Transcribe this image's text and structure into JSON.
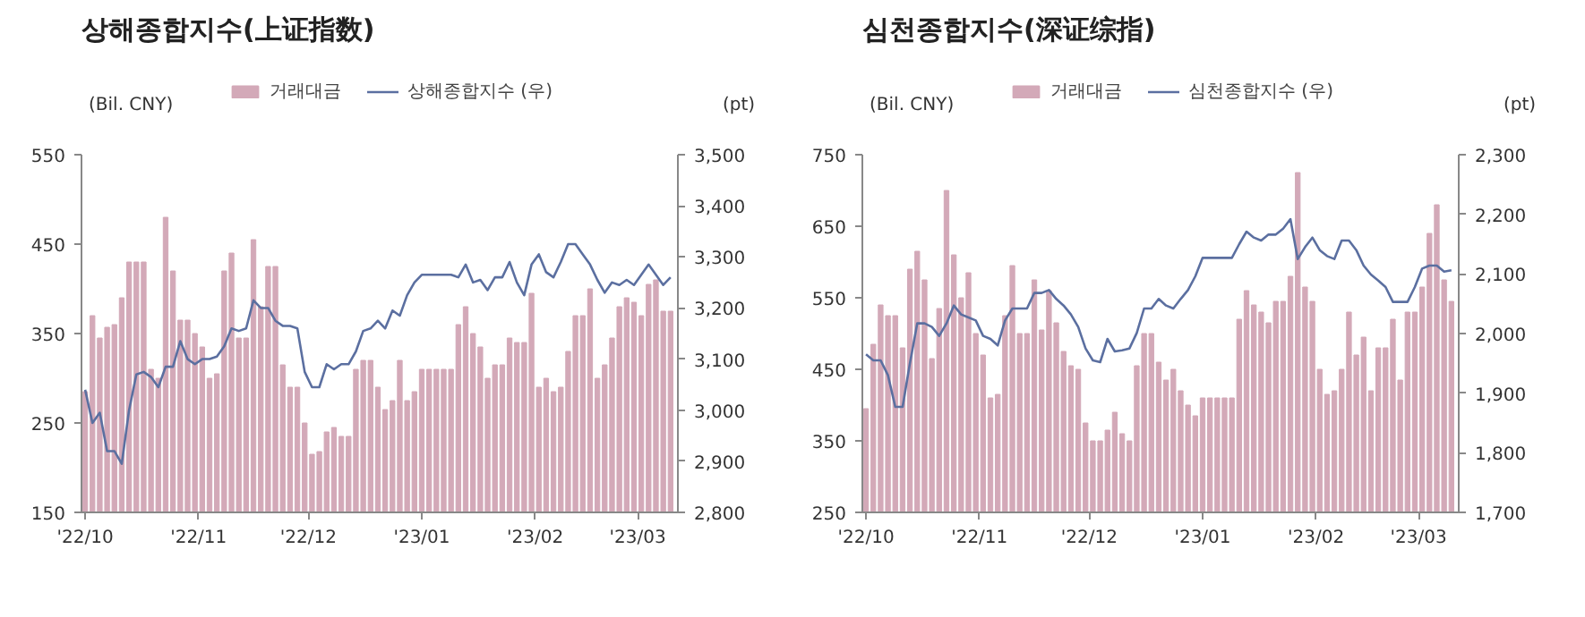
{
  "chart_data": [
    {
      "type": "bar",
      "title": "상해종합지수(上证指数)",
      "ylabel": "(Bil. CNY)",
      "y2label": "(pt)",
      "legend": "top",
      "x": [
        "2022-10-01",
        "2022-10-03",
        "2022-10-05",
        "2022-10-07",
        "2022-10-09",
        "2022-10-11",
        "2022-10-13",
        "2022-10-15",
        "2022-10-17",
        "2022-10-19",
        "2022-10-21",
        "2022-10-23",
        "2022-10-25",
        "2022-10-27",
        "2022-10-29",
        "2022-10-31",
        "2022-11-02",
        "2022-11-04",
        "2022-11-06",
        "2022-11-08",
        "2022-11-10",
        "2022-11-12",
        "2022-11-14",
        "2022-11-16",
        "2022-11-18",
        "2022-11-20",
        "2022-11-22",
        "2022-11-24",
        "2022-11-26",
        "2022-11-28",
        "2022-11-30",
        "2022-12-02",
        "2022-12-04",
        "2022-12-06",
        "2022-12-08",
        "2022-12-10",
        "2022-12-12",
        "2022-12-14",
        "2022-12-16",
        "2022-12-18",
        "2022-12-20",
        "2022-12-22",
        "2022-12-24",
        "2022-12-26",
        "2022-12-28",
        "2022-12-30",
        "2023-01-01",
        "2023-01-03",
        "2023-01-05",
        "2023-01-07",
        "2023-01-09",
        "2023-01-11",
        "2023-01-13",
        "2023-01-15",
        "2023-01-17",
        "2023-01-19",
        "2023-01-21",
        "2023-01-23",
        "2023-01-25",
        "2023-01-27",
        "2023-01-29",
        "2023-01-31",
        "2023-02-02",
        "2023-02-04",
        "2023-02-06",
        "2023-02-08",
        "2023-02-10",
        "2023-02-12",
        "2023-02-14",
        "2023-02-16",
        "2023-02-18",
        "2023-02-20",
        "2023-02-22",
        "2023-02-24",
        "2023-02-26",
        "2023-02-28",
        "2023-03-02",
        "2023-03-04",
        "2023-03-06",
        "2023-03-08",
        "2023-03-10"
      ],
      "xlim": [
        "2022-09-30",
        "2023-03-12"
      ],
      "xticks": [
        {
          "value": "2022-10-01",
          "label": "'22/10"
        },
        {
          "value": "2022-11-01",
          "label": "'22/11"
        },
        {
          "value": "2022-12-01",
          "label": "'22/12"
        },
        {
          "value": "2023-01-01",
          "label": "'23/01"
        },
        {
          "value": "2023-02-01",
          "label": "'23/02"
        },
        {
          "value": "2023-03-01",
          "label": "'23/03"
        }
      ],
      "ylim": [
        150,
        550
      ],
      "yticks": [
        150,
        250,
        350,
        450,
        550
      ],
      "y2lim": [
        2800,
        3500
      ],
      "y2ticks": [
        {
          "value": 2800,
          "label": "2,800"
        },
        {
          "value": 2900,
          "label": "2,900"
        },
        {
          "value": 3000,
          "label": "3,000"
        },
        {
          "value": 3100,
          "label": "3,100"
        },
        {
          "value": 3200,
          "label": "3,200"
        },
        {
          "value": 3300,
          "label": "3,300"
        },
        {
          "value": 3400,
          "label": "3,400"
        },
        {
          "value": 3500,
          "label": "3,500"
        }
      ],
      "series": [
        {
          "name": "거래대금",
          "color": "#d3a9b8",
          "values": [
            285,
            370,
            345,
            357,
            360,
            390,
            430,
            430,
            430,
            310,
            300,
            480,
            420,
            365,
            365,
            350,
            335,
            300,
            305,
            420,
            440,
            345,
            345,
            455,
            380,
            425,
            425,
            315,
            290,
            290,
            250,
            215,
            218,
            240,
            245,
            235,
            235,
            310,
            320,
            320,
            290,
            265,
            275,
            320,
            275,
            285,
            310,
            310,
            310,
            310,
            310,
            360,
            380,
            350,
            335,
            300,
            315,
            315,
            345,
            340,
            340,
            395,
            290,
            300,
            285,
            290,
            330,
            370,
            370,
            400,
            300,
            315,
            345,
            380,
            390,
            385,
            370,
            405,
            410,
            375,
            375
          ]
        },
        {
          "name": "상해종합지수 (우)",
          "type": "line",
          "axis": "y2",
          "color": "#5b6fa0",
          "values": [
            3040,
            2975,
            2995,
            2920,
            2920,
            2895,
            3000,
            3070,
            3075,
            3065,
            3045,
            3085,
            3085,
            3135,
            3100,
            3090,
            3100,
            3100,
            3105,
            3125,
            3160,
            3155,
            3160,
            3215,
            3200,
            3200,
            3175,
            3165,
            3165,
            3160,
            3075,
            3045,
            3045,
            3090,
            3080,
            3090,
            3090,
            3115,
            3155,
            3160,
            3175,
            3160,
            3195,
            3185,
            3225,
            3250,
            3265,
            3265,
            3265,
            3265,
            3265,
            3260,
            3285,
            3250,
            3255,
            3235,
            3260,
            3260,
            3290,
            3250,
            3225,
            3285,
            3305,
            3270,
            3260,
            3290,
            3325,
            3325,
            3305,
            3285,
            3255,
            3230,
            3250,
            3245,
            3255,
            3245,
            3265,
            3285,
            3265,
            3245,
            3260
          ]
        }
      ]
    },
    {
      "type": "bar",
      "title": "심천종합지수(深证综指)",
      "ylabel": "(Bil. CNY)",
      "y2label": "(pt)",
      "legend": "top",
      "x": [
        "2022-10-01",
        "2022-10-03",
        "2022-10-05",
        "2022-10-07",
        "2022-10-09",
        "2022-10-11",
        "2022-10-13",
        "2022-10-15",
        "2022-10-17",
        "2022-10-19",
        "2022-10-21",
        "2022-10-23",
        "2022-10-25",
        "2022-10-27",
        "2022-10-29",
        "2022-10-31",
        "2022-11-02",
        "2022-11-04",
        "2022-11-06",
        "2022-11-08",
        "2022-11-10",
        "2022-11-12",
        "2022-11-14",
        "2022-11-16",
        "2022-11-18",
        "2022-11-20",
        "2022-11-22",
        "2022-11-24",
        "2022-11-26",
        "2022-11-28",
        "2022-11-30",
        "2022-12-02",
        "2022-12-04",
        "2022-12-06",
        "2022-12-08",
        "2022-12-10",
        "2022-12-12",
        "2022-12-14",
        "2022-12-16",
        "2022-12-18",
        "2022-12-20",
        "2022-12-22",
        "2022-12-24",
        "2022-12-26",
        "2022-12-28",
        "2022-12-30",
        "2023-01-01",
        "2023-01-03",
        "2023-01-05",
        "2023-01-07",
        "2023-01-09",
        "2023-01-11",
        "2023-01-13",
        "2023-01-15",
        "2023-01-17",
        "2023-01-19",
        "2023-01-21",
        "2023-01-23",
        "2023-01-25",
        "2023-01-27",
        "2023-01-29",
        "2023-01-31",
        "2023-02-02",
        "2023-02-04",
        "2023-02-06",
        "2023-02-08",
        "2023-02-10",
        "2023-02-12",
        "2023-02-14",
        "2023-02-16",
        "2023-02-18",
        "2023-02-20",
        "2023-02-22",
        "2023-02-24",
        "2023-02-26",
        "2023-02-28",
        "2023-03-02",
        "2023-03-04",
        "2023-03-06",
        "2023-03-08",
        "2023-03-10"
      ],
      "xlim": [
        "2022-09-30",
        "2023-03-12"
      ],
      "xticks": [
        {
          "value": "2022-10-01",
          "label": "'22/10"
        },
        {
          "value": "2022-11-01",
          "label": "'22/11"
        },
        {
          "value": "2022-12-01",
          "label": "'22/12"
        },
        {
          "value": "2023-01-01",
          "label": "'23/01"
        },
        {
          "value": "2023-02-01",
          "label": "'23/02"
        },
        {
          "value": "2023-03-01",
          "label": "'23/03"
        }
      ],
      "ylim": [
        250,
        750
      ],
      "yticks": [
        250,
        350,
        450,
        550,
        650,
        750
      ],
      "y2lim": [
        1700,
        2300
      ],
      "y2ticks": [
        {
          "value": 1700,
          "label": "1,700"
        },
        {
          "value": 1800,
          "label": "1,800"
        },
        {
          "value": 1900,
          "label": "1,900"
        },
        {
          "value": 2000,
          "label": "2,000"
        },
        {
          "value": 2100,
          "label": "2,100"
        },
        {
          "value": 2200,
          "label": "2,200"
        },
        {
          "value": 2300,
          "label": "2,300"
        }
      ],
      "series": [
        {
          "name": "거래대금",
          "color": "#d3a9b8",
          "values": [
            395,
            485,
            540,
            525,
            525,
            480,
            590,
            615,
            575,
            465,
            535,
            700,
            610,
            550,
            585,
            500,
            470,
            410,
            415,
            525,
            595,
            500,
            500,
            575,
            505,
            560,
            515,
            475,
            455,
            450,
            375,
            350,
            350,
            365,
            390,
            360,
            350,
            455,
            500,
            500,
            460,
            435,
            450,
            420,
            400,
            385,
            410,
            410,
            410,
            410,
            410,
            520,
            560,
            540,
            530,
            515,
            545,
            545,
            580,
            725,
            565,
            545,
            450,
            415,
            420,
            450,
            530,
            470,
            495,
            420,
            480,
            480,
            520,
            435,
            530,
            530,
            565,
            640,
            680,
            575,
            545
          ]
        },
        {
          "name": "심천종합지수 (우)",
          "type": "line",
          "axis": "y2",
          "color": "#5b6fa0",
          "values": [
            1965,
            1955,
            1955,
            1930,
            1877,
            1877,
            1950,
            2017,
            2017,
            2011,
            1996,
            2017,
            2047,
            2032,
            2027,
            2022,
            1996,
            1991,
            1980,
            2022,
            2042,
            2042,
            2042,
            2068,
            2068,
            2073,
            2058,
            2047,
            2032,
            2011,
            1975,
            1955,
            1952,
            1991,
            1970,
            1972,
            1975,
            2001,
            2042,
            2042,
            2058,
            2047,
            2042,
            2058,
            2073,
            2096,
            2127,
            2127,
            2127,
            2127,
            2127,
            2150,
            2171,
            2161,
            2156,
            2166,
            2166,
            2176,
            2192,
            2125,
            2145,
            2161,
            2140,
            2130,
            2125,
            2156,
            2156,
            2140,
            2114,
            2099,
            2089,
            2078,
            2053,
            2053,
            2053,
            2078,
            2109,
            2114,
            2114,
            2104,
            2106
          ]
        }
      ]
    }
  ]
}
